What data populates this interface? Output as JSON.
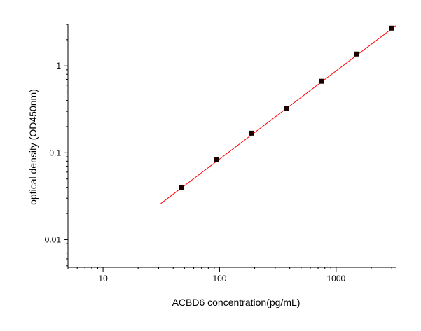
{
  "chart_data": {
    "type": "scatter",
    "x_label": "ACBD6 concentration(pg/mL)",
    "y_label": "optical density (OD450nm)",
    "xscale": "log",
    "yscale": "log",
    "xlim": [
      5,
      3250
    ],
    "ylim": [
      0.0048,
      3
    ],
    "xticks": [
      10,
      100,
      1000
    ],
    "yticks": [
      0.01,
      0.1,
      1
    ],
    "xminor_ticks": [
      5,
      6,
      7,
      8,
      9,
      20,
      30,
      40,
      50,
      60,
      70,
      80,
      90,
      200,
      300,
      400,
      500,
      600,
      700,
      800,
      900,
      2000,
      3000
    ],
    "yminor_ticks": [
      0.005,
      0.006,
      0.007,
      0.008,
      0.009,
      0.02,
      0.03,
      0.04,
      0.05,
      0.06,
      0.07,
      0.08,
      0.09,
      0.2,
      0.3,
      0.4,
      0.5,
      0.6,
      0.7,
      0.8,
      0.9,
      2,
      3
    ],
    "series": [
      {
        "kind": "points",
        "color": "#1a0000",
        "x": [
          46.875,
          93.75,
          187.5,
          375,
          750,
          1500,
          3000
        ],
        "values": [
          0.04,
          0.083,
          0.168,
          0.322,
          0.665,
          1.37,
          2.72
        ]
      },
      {
        "kind": "line",
        "color": "#ff0000",
        "x": [
          31.25,
          3250
        ],
        "values": [
          0.026,
          2.9
        ]
      }
    ]
  }
}
